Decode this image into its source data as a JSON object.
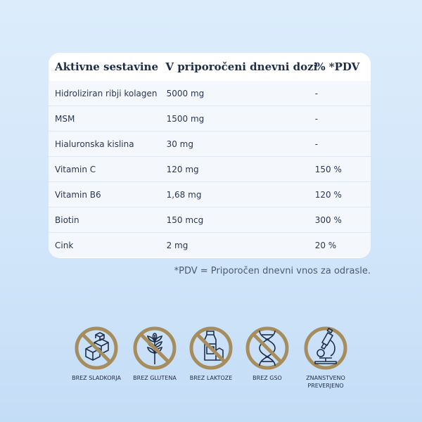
{
  "table": {
    "headers": [
      "Aktivne sestavine",
      "V priporočeni dnevni dozi",
      "% *PDV"
    ],
    "rows": [
      [
        "Hidroliziran ribji kolagen",
        "5000 mg",
        "-"
      ],
      [
        "MSM",
        "1500 mg",
        "-"
      ],
      [
        "Hialuronska kislina",
        "30 mg",
        "-"
      ],
      [
        "Vitamin C",
        "120 mg",
        "150 %"
      ],
      [
        "Vitamin B6",
        "1,68 mg",
        "120 %"
      ],
      [
        "Biotin",
        "150 mcg",
        "300 %"
      ],
      [
        "Cink",
        "2 mg",
        "20 %"
      ]
    ]
  },
  "footnote": "*PDV = Priporočen dnevni vnos za odrasle.",
  "badges": [
    {
      "icon": "sugar-cubes-icon",
      "label": "BREZ SLADKORJA"
    },
    {
      "icon": "wheat-icon",
      "label": "BREZ GLUTENA"
    },
    {
      "icon": "milk-bottle-icon",
      "label": "BREZ LAKTOZE"
    },
    {
      "icon": "dna-icon",
      "label": "BREZ GSO"
    },
    {
      "icon": "microscope-icon",
      "label_line1": "ZNANSTVENO",
      "label_line2": "PREVERJENO"
    }
  ],
  "colors": {
    "background": "#d6e8fa",
    "card": "#ffffff",
    "badge_ring": "#a58d5e",
    "icon_dark": "#1f2d4a"
  }
}
